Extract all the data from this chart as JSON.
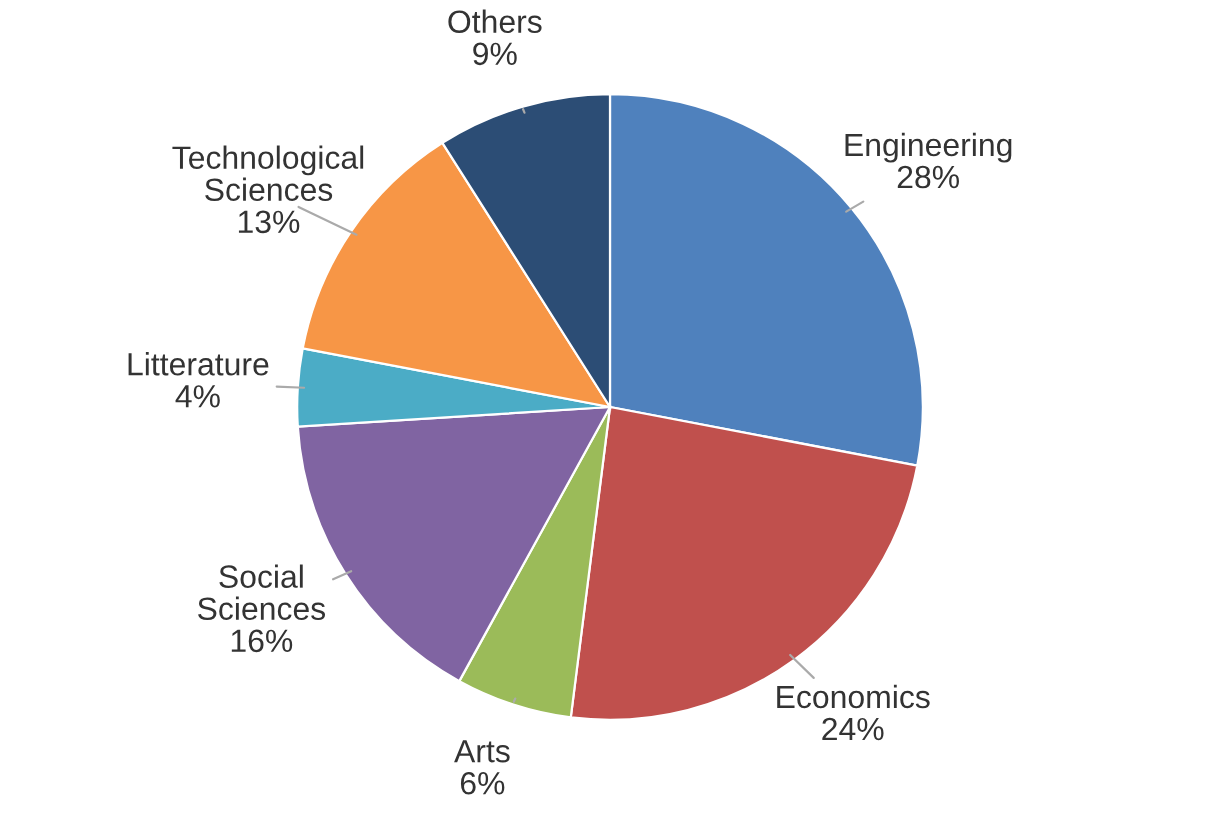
{
  "chart_data": {
    "type": "pie",
    "categories": [
      "Engineering",
      "Economics",
      "Arts",
      "Social Sciences",
      "Litterature",
      "Technological Sciences",
      "Others"
    ],
    "values": [
      28,
      24,
      6,
      16,
      4,
      13,
      9
    ],
    "value_labels": [
      "28%",
      "24%",
      "6%",
      "16%",
      "4%",
      "13%",
      "9%"
    ],
    "colors": [
      "#4f81bd",
      "#c0504d",
      "#9bbb59",
      "#8064a2",
      "#4bacc6",
      "#f79646",
      "#2c4d75"
    ]
  }
}
